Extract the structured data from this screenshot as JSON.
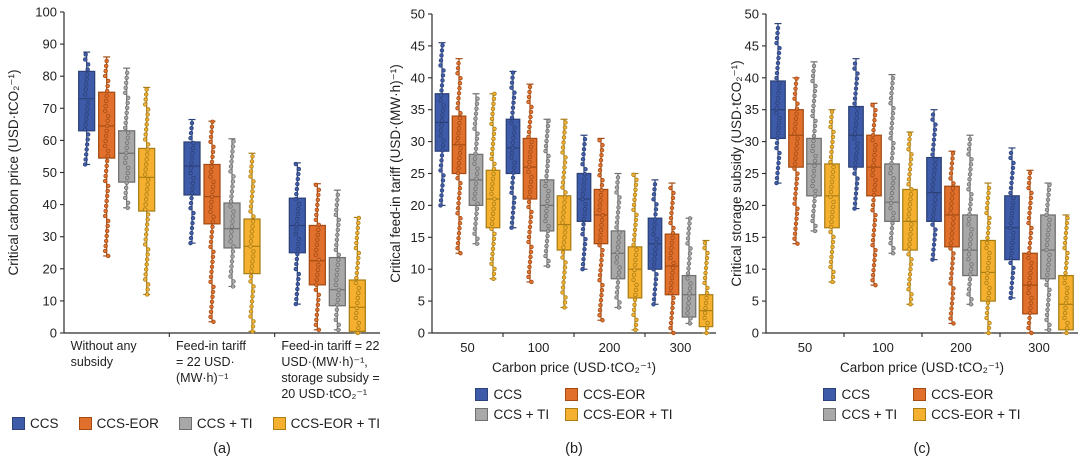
{
  "series": [
    {
      "name": "CCS",
      "color": "#3E5BA9",
      "border": "#2B4178"
    },
    {
      "name": "CCS-EOR",
      "color": "#E2702D",
      "border": "#A34B12"
    },
    {
      "name": "CCS + TI",
      "color": "#A8A8A8",
      "border": "#6F6F6F"
    },
    {
      "name": "CCS-EOR + TI",
      "color": "#F5B02F",
      "border": "#A87E15"
    }
  ],
  "chart_data": [
    {
      "id": "a",
      "type": "boxplot",
      "caption": "(a)",
      "ylabel": "Critical carbon price (USD·tCO₂⁻¹)",
      "ylim": [
        0,
        100
      ],
      "ytick": 10,
      "xlabel": "",
      "categories": [
        [
          "Without any",
          "subsidy"
        ],
        [
          "Feed-in tariff",
          "= 22 USD·",
          "(MW·h)⁻¹"
        ],
        [
          "Feed-in tariff = 22",
          "USD·(MW·h)⁻¹,",
          "storage subsidy =",
          "20 USD·tCO₂⁻¹"
        ]
      ],
      "legend_layout": "row",
      "boxes": [
        [
          [
            52.5,
            63,
            73,
            81.5,
            87.5
          ],
          [
            24,
            54.5,
            64.5,
            75,
            86
          ],
          [
            39,
            47,
            56,
            63,
            82.5
          ],
          [
            12,
            38,
            48.5,
            57.5,
            76.5
          ]
        ],
        [
          [
            28,
            43,
            52,
            59.5,
            66.5
          ],
          [
            3.5,
            34,
            42.5,
            52.5,
            66
          ],
          [
            14.5,
            26.5,
            32.5,
            40.5,
            60.5
          ],
          [
            0.5,
            18.5,
            27,
            35.5,
            56
          ]
        ],
        [
          [
            9,
            25,
            33.5,
            42,
            53
          ],
          [
            1,
            15,
            22.5,
            33.5,
            46.5
          ],
          [
            1,
            8.5,
            13.5,
            23.5,
            44.5
          ],
          [
            0,
            0.5,
            8,
            16.5,
            36
          ]
        ]
      ]
    },
    {
      "id": "b",
      "type": "boxplot",
      "caption": "(b)",
      "ylabel": "Critical feed-in tariff (USD·(MW·h)⁻¹)",
      "ylim": [
        0,
        50
      ],
      "ytick": 5,
      "xlabel": "Carbon price (USD·tCO₂⁻¹)",
      "categories": [
        "50",
        "100",
        "200",
        "300"
      ],
      "legend_layout": "grid",
      "boxes": [
        [
          [
            20,
            28.5,
            33,
            37.5,
            45.5
          ],
          [
            12.5,
            25,
            29.5,
            34,
            43
          ],
          [
            14,
            20,
            24,
            28,
            37.5
          ],
          [
            8.5,
            16.5,
            21,
            25.5,
            37.5
          ]
        ],
        [
          [
            16.5,
            25,
            29,
            33.5,
            41
          ],
          [
            8,
            21,
            26,
            30.5,
            39
          ],
          [
            10.5,
            16,
            20,
            24,
            33.5
          ],
          [
            4,
            13,
            17,
            21.5,
            33.5
          ]
        ],
        [
          [
            10,
            17.5,
            21,
            25,
            31
          ],
          [
            2,
            14,
            18.5,
            22.5,
            30.5
          ],
          [
            4,
            8.5,
            12.5,
            16,
            25
          ],
          [
            0.5,
            5.5,
            10,
            13.5,
            25
          ]
        ],
        [
          [
            4.5,
            10,
            14,
            18,
            24
          ],
          [
            0,
            6,
            10.5,
            15.5,
            23.5
          ],
          [
            1.5,
            2.5,
            6,
            9,
            18
          ],
          [
            0,
            1,
            3.5,
            6,
            14.5
          ]
        ]
      ]
    },
    {
      "id": "c",
      "type": "boxplot",
      "caption": "(c)",
      "ylabel": "Critical storage subsidy (USD·tCO₂⁻¹)",
      "ylim": [
        0,
        50
      ],
      "ytick": 5,
      "xlabel": "Carbon price (USD·tCO₂⁻¹)",
      "categories": [
        "50",
        "100",
        "200",
        "300"
      ],
      "legend_layout": "grid",
      "boxes": [
        [
          [
            23.5,
            30.5,
            35,
            39.5,
            48.5
          ],
          [
            14,
            26,
            31,
            35,
            40
          ],
          [
            16,
            21.5,
            26.5,
            30.5,
            42.5
          ],
          [
            8,
            16.5,
            21.5,
            26.5,
            35
          ]
        ],
        [
          [
            19.5,
            26,
            31,
            35.5,
            43
          ],
          [
            7.5,
            21.5,
            26,
            31,
            36
          ],
          [
            12.5,
            17.5,
            20.5,
            26.5,
            40.5
          ],
          [
            4.5,
            13,
            17.5,
            22.5,
            31.5
          ]
        ],
        [
          [
            11.5,
            17.5,
            22,
            27.5,
            35
          ],
          [
            1.5,
            13.5,
            18.5,
            23,
            28.5
          ],
          [
            4.5,
            9,
            13,
            18.5,
            31
          ],
          [
            0,
            5,
            9.5,
            14.5,
            23.5
          ]
        ],
        [
          [
            5.5,
            11.5,
            16.5,
            21.5,
            29
          ],
          [
            0,
            3,
            7.5,
            12.5,
            25.5
          ],
          [
            0.5,
            8.5,
            13,
            18.5,
            23.5
          ],
          [
            0,
            0.5,
            4.5,
            9,
            18.5
          ]
        ]
      ]
    }
  ]
}
